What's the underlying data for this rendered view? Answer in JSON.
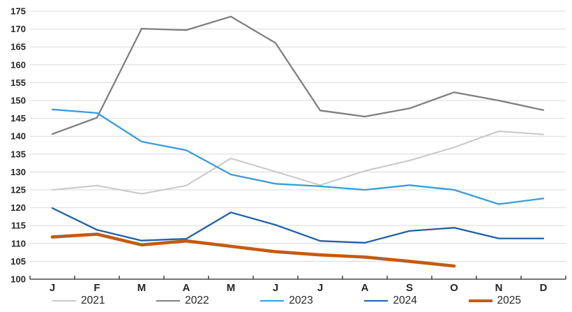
{
  "chart_data": {
    "type": "line",
    "title": "",
    "xlabel": "",
    "ylabel": "",
    "grid": true,
    "legend_position": "bottom",
    "categories": [
      "J",
      "F",
      "M",
      "A",
      "M",
      "J",
      "J",
      "A",
      "S",
      "O",
      "N",
      "D"
    ],
    "y_axis": {
      "min": 100,
      "max": 175,
      "step": 5,
      "tick_labels": [
        "100",
        "105",
        "110",
        "115",
        "120",
        "125",
        "130",
        "135",
        "140",
        "145",
        "150",
        "155",
        "160",
        "165",
        "170",
        "175"
      ]
    },
    "series": [
      {
        "name": "2021",
        "color": "#c8c8c8",
        "stroke_width": 2,
        "values": [
          125.0,
          126.2,
          123.9,
          126.2,
          133.8,
          130.1,
          126.3,
          130.3,
          133.2,
          136.9,
          141.4,
          140.5
        ]
      },
      {
        "name": "2022",
        "color": "#7f7f7f",
        "stroke_width": 2.3,
        "values": [
          140.6,
          145.2,
          170.1,
          169.7,
          173.5,
          166.1,
          147.2,
          145.5,
          147.8,
          152.3,
          150.0,
          147.3
        ]
      },
      {
        "name": "2023",
        "color": "#3a9bdc",
        "stroke_width": 2.3,
        "values": [
          147.5,
          146.5,
          138.5,
          136.1,
          129.3,
          126.7,
          126.0,
          125.0,
          126.3,
          125.0,
          121.0,
          122.6
        ]
      },
      {
        "name": "2024",
        "color": "#1f5fa8",
        "stroke_width": 2.3,
        "values": [
          119.9,
          113.8,
          110.8,
          111.3,
          118.7,
          115.2,
          110.7,
          110.2,
          113.5,
          114.4,
          111.4,
          111.4
        ]
      },
      {
        "name": "2025",
        "color": "#c55a11",
        "stroke_width": 4.6,
        "values": [
          111.8,
          112.6,
          109.6,
          110.7,
          109.2,
          107.7,
          106.8,
          106.2,
          105.0,
          103.7,
          null,
          null
        ]
      }
    ],
    "style": {
      "gridline_color": "#d9d9d9",
      "axis_line_color": "#262626",
      "tick_label_color": "#262626",
      "background": "#ffffff"
    }
  }
}
